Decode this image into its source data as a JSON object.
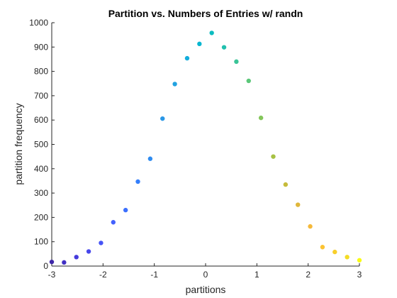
{
  "chart_data": {
    "type": "scatter",
    "title": "Partition vs. Numbers of Entries w/ randn",
    "xlabel": "partitions",
    "ylabel": "partition frequency",
    "xlim": [
      -3,
      3
    ],
    "ylim": [
      0,
      1000
    ],
    "xticks": [
      "-3",
      "-2",
      "-1",
      "0",
      "1",
      "2",
      "3"
    ],
    "yticks": [
      "0",
      "100",
      "200",
      "300",
      "400",
      "500",
      "600",
      "700",
      "800",
      "900",
      "1000"
    ],
    "grid": false,
    "legend": "none",
    "colormap": "parula",
    "points": [
      {
        "x": -3.0,
        "y": 17,
        "color": "#3e26a8"
      },
      {
        "x": -2.76,
        "y": 15,
        "color": "#4130c4"
      },
      {
        "x": -2.52,
        "y": 37,
        "color": "#453bdc"
      },
      {
        "x": -2.28,
        "y": 60,
        "color": "#4747eb"
      },
      {
        "x": -2.04,
        "y": 95,
        "color": "#4654f6"
      },
      {
        "x": -1.8,
        "y": 180,
        "color": "#4361fd"
      },
      {
        "x": -1.56,
        "y": 230,
        "color": "#3c70fe"
      },
      {
        "x": -1.32,
        "y": 347,
        "color": "#347ffb"
      },
      {
        "x": -1.08,
        "y": 441,
        "color": "#2e8bf0"
      },
      {
        "x": -0.84,
        "y": 606,
        "color": "#2a97e6"
      },
      {
        "x": -0.6,
        "y": 748,
        "color": "#22a2e0"
      },
      {
        "x": -0.36,
        "y": 854,
        "color": "#14addc"
      },
      {
        "x": -0.12,
        "y": 913,
        "color": "#06b6d0"
      },
      {
        "x": 0.12,
        "y": 958,
        "color": "#0cbcc0"
      },
      {
        "x": 0.36,
        "y": 899,
        "color": "#22c0ae"
      },
      {
        "x": 0.6,
        "y": 840,
        "color": "#3ac497"
      },
      {
        "x": 0.84,
        "y": 761,
        "color": "#5bc779"
      },
      {
        "x": 1.08,
        "y": 609,
        "color": "#84c65b"
      },
      {
        "x": 1.32,
        "y": 450,
        "color": "#a7c143"
      },
      {
        "x": 1.56,
        "y": 335,
        "color": "#c6bb3b"
      },
      {
        "x": 1.8,
        "y": 252,
        "color": "#e0b73b"
      },
      {
        "x": 2.04,
        "y": 163,
        "color": "#f5b93a"
      },
      {
        "x": 2.28,
        "y": 78,
        "color": "#fcc332"
      },
      {
        "x": 2.52,
        "y": 58,
        "color": "#f8cf2b"
      },
      {
        "x": 2.76,
        "y": 37,
        "color": "#f4dc24"
      },
      {
        "x": 3.0,
        "y": 24,
        "color": "#f9fb14"
      }
    ]
  }
}
